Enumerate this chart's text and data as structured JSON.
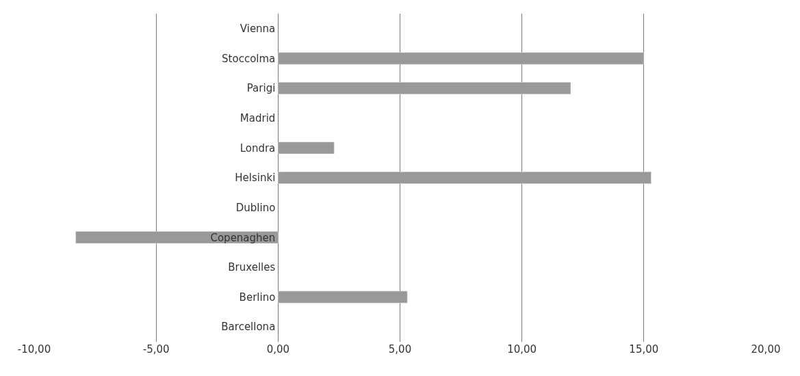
{
  "chart_data": {
    "type": "bar",
    "orientation": "horizontal",
    "categories": [
      "Vienna",
      "Stoccolma",
      "Parigi",
      "Madrid",
      "Londra",
      "Helsinki",
      "Dublino",
      "Copenaghen",
      "Bruxelles",
      "Berlino",
      "Barcellona"
    ],
    "values": [
      null,
      15.0,
      12.0,
      null,
      2.3,
      15.3,
      null,
      -8.3,
      null,
      5.3,
      null
    ],
    "color": "#999999",
    "xlim": [
      -10,
      20
    ],
    "xticks": [
      {
        "value": -10,
        "label": "-10,00"
      },
      {
        "value": -5,
        "label": "-5,00"
      },
      {
        "value": 0,
        "label": "0,00"
      },
      {
        "value": 5,
        "label": "5,00"
      },
      {
        "value": 10,
        "label": "10,00"
      },
      {
        "value": 15,
        "label": "15,00"
      },
      {
        "value": 20,
        "label": "20,00"
      }
    ],
    "grid": "x"
  }
}
